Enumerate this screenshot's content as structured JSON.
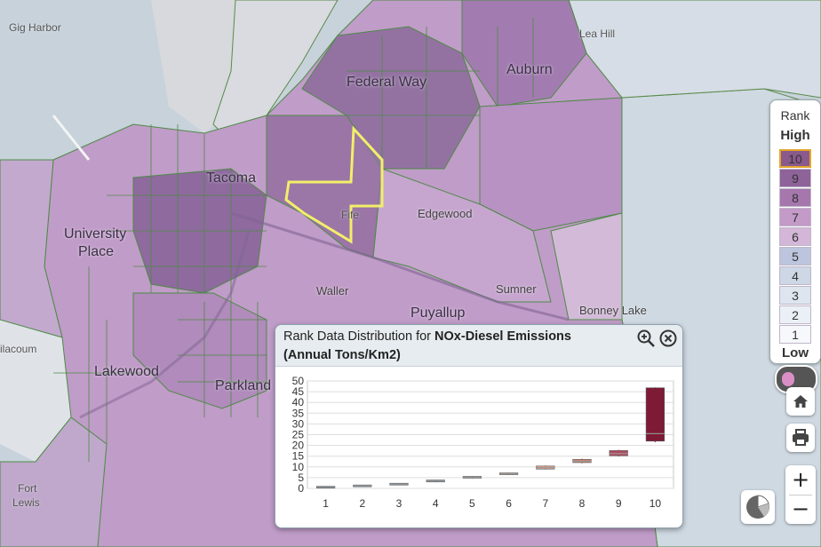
{
  "map": {
    "places": [
      {
        "name": "Gig Harbor",
        "size": "sm"
      },
      {
        "name": "Lea Hill",
        "size": "sm"
      },
      {
        "name": "Auburn",
        "size": "lg"
      },
      {
        "name": "Federal Way",
        "size": "lg"
      },
      {
        "name": "Tacoma",
        "size": "lg"
      },
      {
        "name": "Fife",
        "size": "sm"
      },
      {
        "name": "Edgewood",
        "size": "md"
      },
      {
        "name": "University",
        "size": "lg"
      },
      {
        "name": "Place",
        "size": "lg"
      },
      {
        "name": "Waller",
        "size": "md"
      },
      {
        "name": "Sumner",
        "size": "md"
      },
      {
        "name": "Puyallup",
        "size": "lg"
      },
      {
        "name": "Bonney Lake",
        "size": "md"
      },
      {
        "name": "ilacoum",
        "size": "sm"
      },
      {
        "name": "Lakewood",
        "size": "lg"
      },
      {
        "name": "Parkland",
        "size": "lg"
      },
      {
        "name": "Fort",
        "size": "sm"
      },
      {
        "name": "Lewis",
        "size": "sm"
      }
    ],
    "selected_region_color": "#f2ee6a"
  },
  "legend": {
    "title": "Rank",
    "high_label": "High",
    "low_label": "Low",
    "cells": [
      {
        "label": "10",
        "color": "#8a5a8c",
        "selected": true
      },
      {
        "label": "9",
        "color": "#8e639a"
      },
      {
        "label": "8",
        "color": "#a577ad"
      },
      {
        "label": "7",
        "color": "#c39ac8"
      },
      {
        "label": "6",
        "color": "#d3b6d8"
      },
      {
        "label": "5",
        "color": "#bcc5dd"
      },
      {
        "label": "4",
        "color": "#cdd7e6"
      },
      {
        "label": "3",
        "color": "#dde5ee"
      },
      {
        "label": "2",
        "color": "#eaf0f5"
      },
      {
        "label": "1",
        "color": "#f6f8fb"
      }
    ]
  },
  "controls": {
    "home_icon": "home-icon",
    "print_icon": "print-icon",
    "zoom_in": "+",
    "zoom_out": "−",
    "pie_icon": "pie-chart-icon"
  },
  "popup": {
    "title_prefix": "Rank Data Distribution for ",
    "title_bold": "NOx-Diesel Emissions",
    "title_line2": "(Annual Tons/Km2)"
  },
  "chart_data": {
    "type": "box",
    "categories": [
      "1",
      "2",
      "3",
      "4",
      "5",
      "6",
      "7",
      "8",
      "9",
      "10"
    ],
    "ylim": [
      0,
      50
    ],
    "yticks": [
      0,
      5,
      10,
      15,
      20,
      25,
      30,
      35,
      40,
      45,
      50
    ],
    "boxes": [
      {
        "low": 0.3,
        "q1": 0.5,
        "median": 0.7,
        "q3": 1.0,
        "high": 1.1,
        "color": "#5f7f97"
      },
      {
        "low": 0.8,
        "q1": 1.0,
        "median": 1.3,
        "q3": 1.6,
        "high": 1.7,
        "color": "#6f8ea7"
      },
      {
        "low": 1.6,
        "q1": 1.8,
        "median": 2.1,
        "q3": 2.4,
        "high": 2.5,
        "color": "#7e9ab2"
      },
      {
        "low": 2.8,
        "q1": 3.0,
        "median": 3.4,
        "q3": 3.9,
        "high": 4.1,
        "color": "#93a8bc"
      },
      {
        "low": 4.5,
        "q1": 4.8,
        "median": 5.2,
        "q3": 5.6,
        "high": 5.8,
        "color": "#a7a4ab"
      },
      {
        "low": 6.2,
        "q1": 6.4,
        "median": 6.8,
        "q3": 7.2,
        "high": 7.4,
        "color": "#c9a79b"
      },
      {
        "low": 8.6,
        "q1": 9.0,
        "median": 9.6,
        "q3": 10.4,
        "high": 10.8,
        "color": "#e3a188"
      },
      {
        "low": 11.5,
        "q1": 12.0,
        "median": 12.6,
        "q3": 13.5,
        "high": 14.0,
        "color": "#cf8670"
      },
      {
        "low": 14.8,
        "q1": 15.2,
        "median": 16.2,
        "q3": 17.6,
        "high": 18.0,
        "color": "#b04a5e"
      },
      {
        "low": 21.5,
        "q1": 22.0,
        "median": 25.5,
        "q3": 46.8,
        "high": 47.0,
        "color": "#7d1a35"
      }
    ]
  }
}
